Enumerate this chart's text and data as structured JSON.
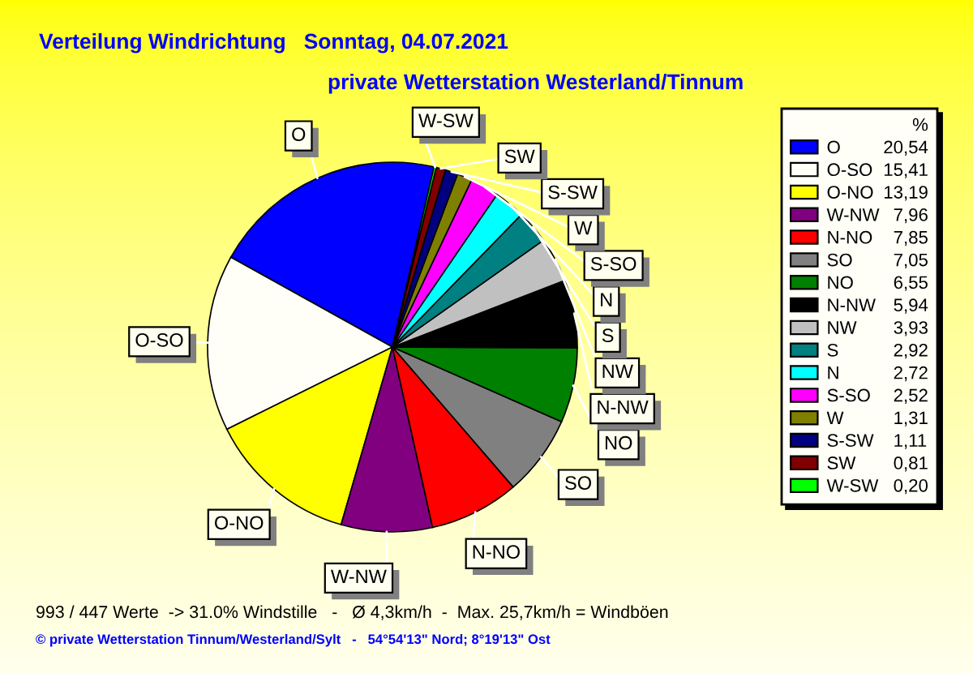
{
  "chart_data": {
    "type": "pie",
    "title": "Verteilung Windrichtung   Sonntag, 04.07.2021",
    "subtitle": "private Wetterstation Westerland/Tinnum",
    "categories": [
      "O",
      "O-SO",
      "O-NO",
      "W-NW",
      "N-NO",
      "SO",
      "NO",
      "N-NW",
      "NW",
      "S",
      "N",
      "S-SO",
      "W",
      "S-SW",
      "SW",
      "W-SW"
    ],
    "values": [
      20.54,
      15.41,
      13.19,
      7.96,
      7.85,
      7.05,
      6.55,
      5.94,
      3.93,
      2.92,
      2.72,
      2.52,
      1.31,
      1.11,
      0.81,
      0.2
    ],
    "value_labels": [
      "20,54",
      "15,41",
      "13,19",
      "7,96",
      "7,85",
      "7,05",
      "6,55",
      "5,94",
      "3,93",
      "2,92",
      "2,72",
      "2,52",
      "1,31",
      "1,11",
      "0,81",
      "0,20"
    ],
    "colors": [
      "#0000ff",
      "#fffff8",
      "#ffff00",
      "#800080",
      "#ff0000",
      "#808080",
      "#008000",
      "#000000",
      "#c0c0c0",
      "#008080",
      "#00ffff",
      "#ff00ff",
      "#808000",
      "#000080",
      "#800000",
      "#00ff00"
    ],
    "legend": "right",
    "legend_title": "%",
    "annotations": [
      "993 / 447 Werte  -> 31.0% Windstille   -   Ø 4,3km/h  -  Max. 25,7km/h = Windböen",
      "© private Wetterstation Tinnum/Westerland/Sylt   -   54°54'13\" Nord; 8°19'13\" Ost"
    ]
  }
}
